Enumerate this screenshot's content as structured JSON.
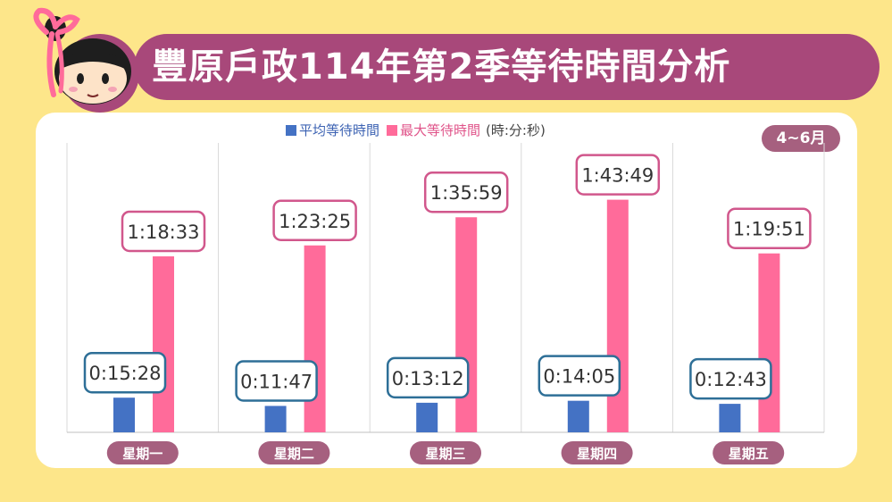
{
  "title": "豐原戶政114年第2季等待時間分析",
  "period": "4~6月",
  "legend": {
    "avg": "平均等待時間",
    "max": "最大等待時間",
    "unit": "(時:分:秒)"
  },
  "colors": {
    "avg": "#4472c4",
    "max": "#ff6b9a",
    "banner": "#a8487a",
    "background": "#fde68a",
    "avg_label_border": "#2e6f97",
    "max_label_border": "#d1578c",
    "category_pill": "#a6607f"
  },
  "chart_data": {
    "type": "bar",
    "categories": [
      "星期一",
      "星期二",
      "星期三",
      "星期四",
      "星期五"
    ],
    "series": [
      {
        "name": "平均等待時間",
        "values": [
          928,
          707,
          792,
          845,
          763
        ],
        "labels": [
          "0:15:28",
          "0:11:47",
          "0:13:12",
          "0:14:05",
          "0:12:43"
        ]
      },
      {
        "name": "最大等待時間",
        "values": [
          4713,
          5005,
          5759,
          6229,
          4791
        ],
        "labels": [
          "1:18:33",
          "1:23:25",
          "1:35:59",
          "1:43:49",
          "1:19:51"
        ]
      }
    ],
    "value_unit": "seconds",
    "ylim": [
      0,
      7750
    ],
    "grid": false,
    "legend_position": "top-center"
  }
}
